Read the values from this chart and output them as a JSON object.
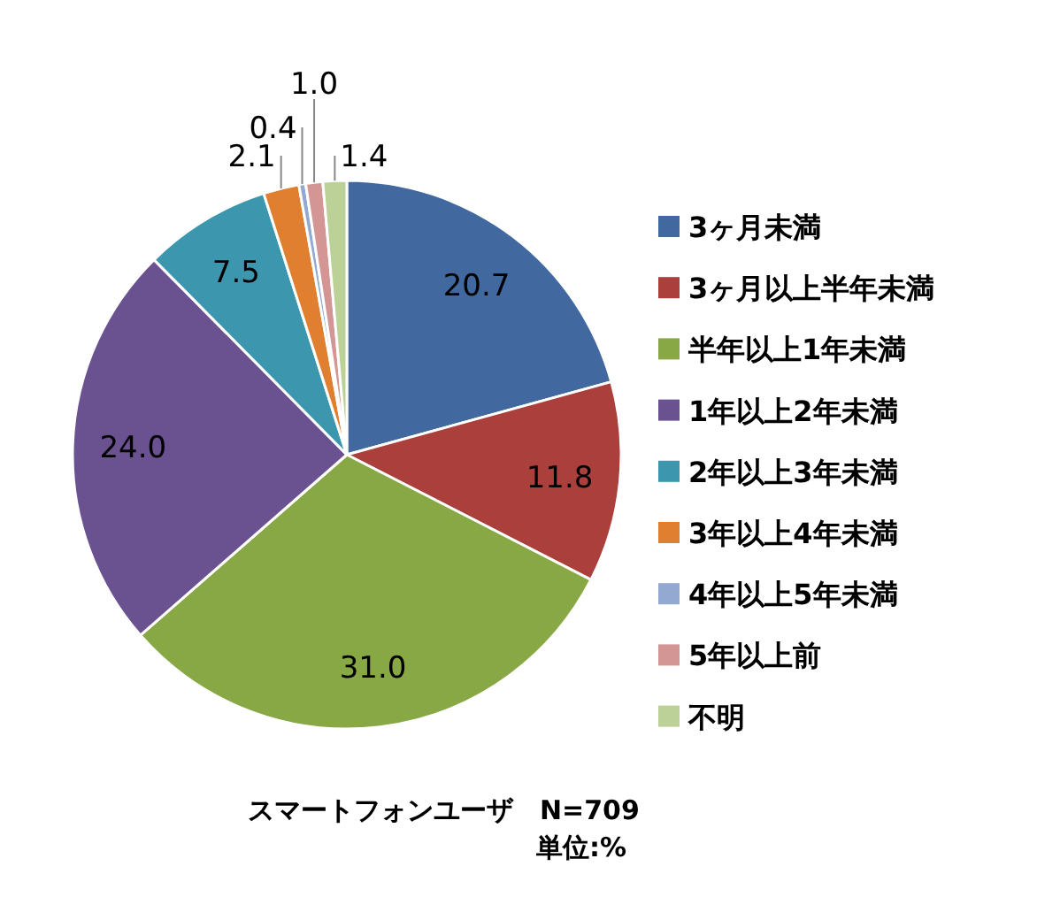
{
  "chart_data": {
    "type": "pie",
    "categories": [
      "3ヶ月未満",
      "3ヶ月以上半年未満",
      "半年以上1年未満",
      "1年以上2年未満",
      "2年以上3年未満",
      "3年以上4年未満",
      "4年以上5年未満",
      "5年以上前",
      "不明"
    ],
    "values": [
      20.7,
      11.8,
      31.0,
      24.0,
      7.5,
      2.1,
      0.4,
      1.0,
      1.4
    ],
    "colors": [
      "#41699f",
      "#ab3f3c",
      "#88a745",
      "#6a5190",
      "#3c97ae",
      "#e07f2f",
      "#93a9d1",
      "#d49694",
      "#bcd198"
    ],
    "value_labels": [
      "20.7",
      "11.8",
      "31.0",
      "24.0",
      "7.5",
      "2.1",
      "0.4",
      "1.0",
      "1.4"
    ],
    "legend": "right",
    "annotations": [
      "スマートフォンユーザ　N=709",
      "単位:%"
    ]
  }
}
